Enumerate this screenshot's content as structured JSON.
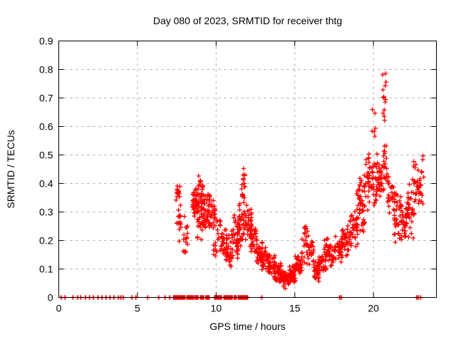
{
  "chart_data": {
    "type": "scatter",
    "title": "Day 080 of 2023, SRMTID for receiver thtg",
    "xlabel": "GPS time / hours",
    "ylabel": "SRMTID / TECUs",
    "xlim": [
      0,
      24
    ],
    "ylim": [
      0,
      0.9
    ],
    "xticks": [
      0,
      5,
      10,
      15,
      20
    ],
    "xtick_labels": [
      "0",
      "5",
      "10",
      "15",
      "20"
    ],
    "yticks": [
      0,
      0.1,
      0.2,
      0.3,
      0.4,
      0.5,
      0.6,
      0.7,
      0.8,
      0.9
    ],
    "ytick_labels": [
      "0",
      "0.1",
      "0.2",
      "0.3",
      "0.4",
      "0.5",
      "0.6",
      "0.7",
      "0.8",
      "0.9"
    ],
    "grid": true,
    "legend": "none",
    "marker": "plus",
    "marker_color": "#ff0000",
    "grid_color": "#a8a8a8",
    "border_color": "#000000",
    "seed": 2023080,
    "zero_markers": {
      "singles": [
        0.15,
        0.4,
        0.9,
        1.2,
        1.4,
        1.7,
        1.95,
        2.2,
        2.5,
        2.75,
        3.0,
        3.25,
        3.5,
        3.8,
        3.95,
        4.1,
        4.65,
        4.9,
        5.65,
        6.35,
        6.75,
        7.05,
        12.9,
        17.85,
        17.95,
        22.75,
        22.85,
        23.0
      ],
      "runs": [
        [
          7.3,
          8.05
        ],
        [
          8.15,
          8.55
        ],
        [
          8.65,
          8.85
        ],
        [
          9.0,
          9.2
        ],
        [
          9.35,
          9.55
        ],
        [
          9.9,
          10.35
        ],
        [
          10.5,
          10.7
        ],
        [
          10.78,
          11.05
        ],
        [
          11.15,
          11.3
        ],
        [
          11.4,
          11.8
        ],
        [
          11.88,
          12.02
        ]
      ],
      "run_step": 0.04
    },
    "clusters": [
      [
        7.45,
        7.7,
        0.32,
        0.4,
        16
      ],
      [
        7.5,
        7.78,
        0.19,
        0.33,
        15
      ],
      [
        7.9,
        8.2,
        0.13,
        0.3,
        15
      ],
      [
        8.5,
        8.82,
        0.24,
        0.42,
        30
      ],
      [
        8.8,
        9.2,
        0.2,
        0.42,
        48
      ],
      [
        8.85,
        9.05,
        0.38,
        0.44,
        7
      ],
      [
        9.2,
        9.6,
        0.21,
        0.38,
        40
      ],
      [
        9.6,
        9.95,
        0.24,
        0.36,
        24
      ],
      [
        9.7,
        10.05,
        0.13,
        0.2,
        8
      ],
      [
        10.0,
        10.3,
        0.15,
        0.3,
        12
      ],
      [
        10.3,
        10.7,
        0.12,
        0.27,
        30
      ],
      [
        10.65,
        11.0,
        0.1,
        0.22,
        28
      ],
      [
        11.0,
        11.4,
        0.11,
        0.3,
        34
      ],
      [
        11.35,
        11.65,
        0.15,
        0.35,
        30
      ],
      [
        11.6,
        11.85,
        0.2,
        0.44,
        24
      ],
      [
        11.7,
        11.85,
        0.4,
        0.47,
        7
      ],
      [
        11.85,
        12.25,
        0.17,
        0.33,
        34
      ],
      [
        12.2,
        12.6,
        0.14,
        0.27,
        30
      ],
      [
        12.55,
        12.95,
        0.1,
        0.22,
        28
      ],
      [
        12.9,
        13.35,
        0.08,
        0.2,
        30
      ],
      [
        13.3,
        13.75,
        0.06,
        0.16,
        34
      ],
      [
        13.7,
        14.15,
        0.045,
        0.13,
        40
      ],
      [
        14.1,
        14.65,
        0.03,
        0.1,
        48
      ],
      [
        14.6,
        15.05,
        0.04,
        0.12,
        44
      ],
      [
        15.0,
        15.5,
        0.06,
        0.16,
        40
      ],
      [
        15.45,
        15.95,
        0.1,
        0.27,
        30
      ],
      [
        15.9,
        16.2,
        0.12,
        0.22,
        18
      ],
      [
        16.15,
        16.55,
        0.05,
        0.14,
        30
      ],
      [
        16.5,
        17.0,
        0.08,
        0.17,
        34
      ],
      [
        16.85,
        17.15,
        0.15,
        0.23,
        10
      ],
      [
        17.0,
        17.5,
        0.1,
        0.2,
        34
      ],
      [
        17.5,
        18.0,
        0.12,
        0.22,
        34
      ],
      [
        18.0,
        18.5,
        0.14,
        0.26,
        34
      ],
      [
        18.5,
        19.0,
        0.17,
        0.32,
        38
      ],
      [
        18.9,
        19.15,
        0.3,
        0.45,
        10
      ],
      [
        19.0,
        19.45,
        0.22,
        0.42,
        38
      ],
      [
        19.4,
        19.8,
        0.28,
        0.55,
        28
      ],
      [
        19.8,
        20.25,
        0.3,
        0.52,
        34
      ],
      [
        19.9,
        20.15,
        0.55,
        0.69,
        6
      ],
      [
        20.25,
        20.6,
        0.33,
        0.5,
        30
      ],
      [
        20.55,
        20.8,
        0.55,
        0.82,
        14
      ],
      [
        20.6,
        20.9,
        0.35,
        0.55,
        20
      ],
      [
        20.9,
        21.35,
        0.25,
        0.45,
        34
      ],
      [
        21.3,
        21.8,
        0.18,
        0.38,
        34
      ],
      [
        21.75,
        22.2,
        0.17,
        0.35,
        34
      ],
      [
        22.15,
        22.6,
        0.2,
        0.42,
        30
      ],
      [
        22.55,
        22.9,
        0.28,
        0.52,
        24
      ],
      [
        22.9,
        23.2,
        0.3,
        0.52,
        18
      ]
    ]
  }
}
